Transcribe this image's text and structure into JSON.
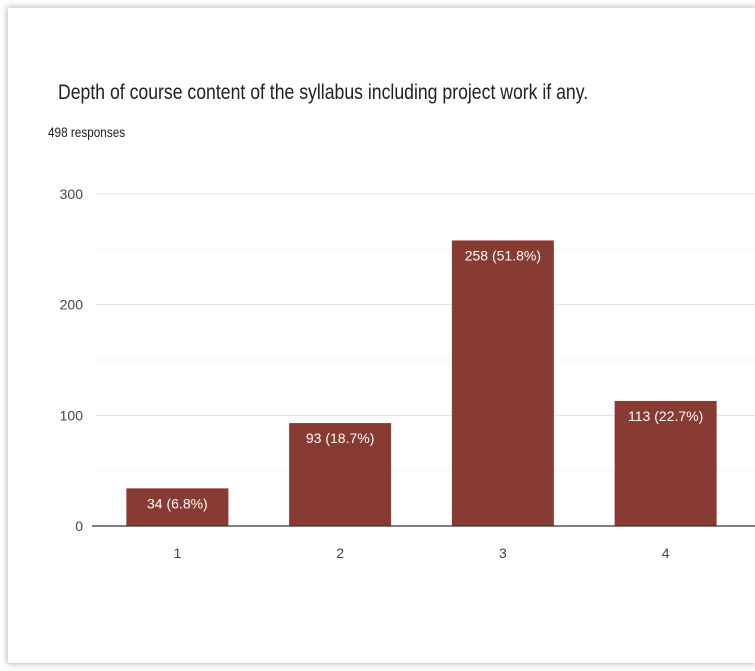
{
  "chart_data": {
    "type": "bar",
    "title": "Depth of course content of the syllabus including project work if any.",
    "subtitle": "498 responses",
    "categories": [
      "1",
      "2",
      "3",
      "4"
    ],
    "values": [
      34,
      93,
      258,
      113
    ],
    "data_labels": [
      "34 (6.8%)",
      "93 (18.7%)",
      "258 (51.8%)",
      "113 (22.7%)"
    ],
    "yticks": [
      0,
      100,
      200,
      300
    ],
    "ylim": [
      0,
      300
    ],
    "grid": true,
    "bar_color": "#873b32"
  }
}
